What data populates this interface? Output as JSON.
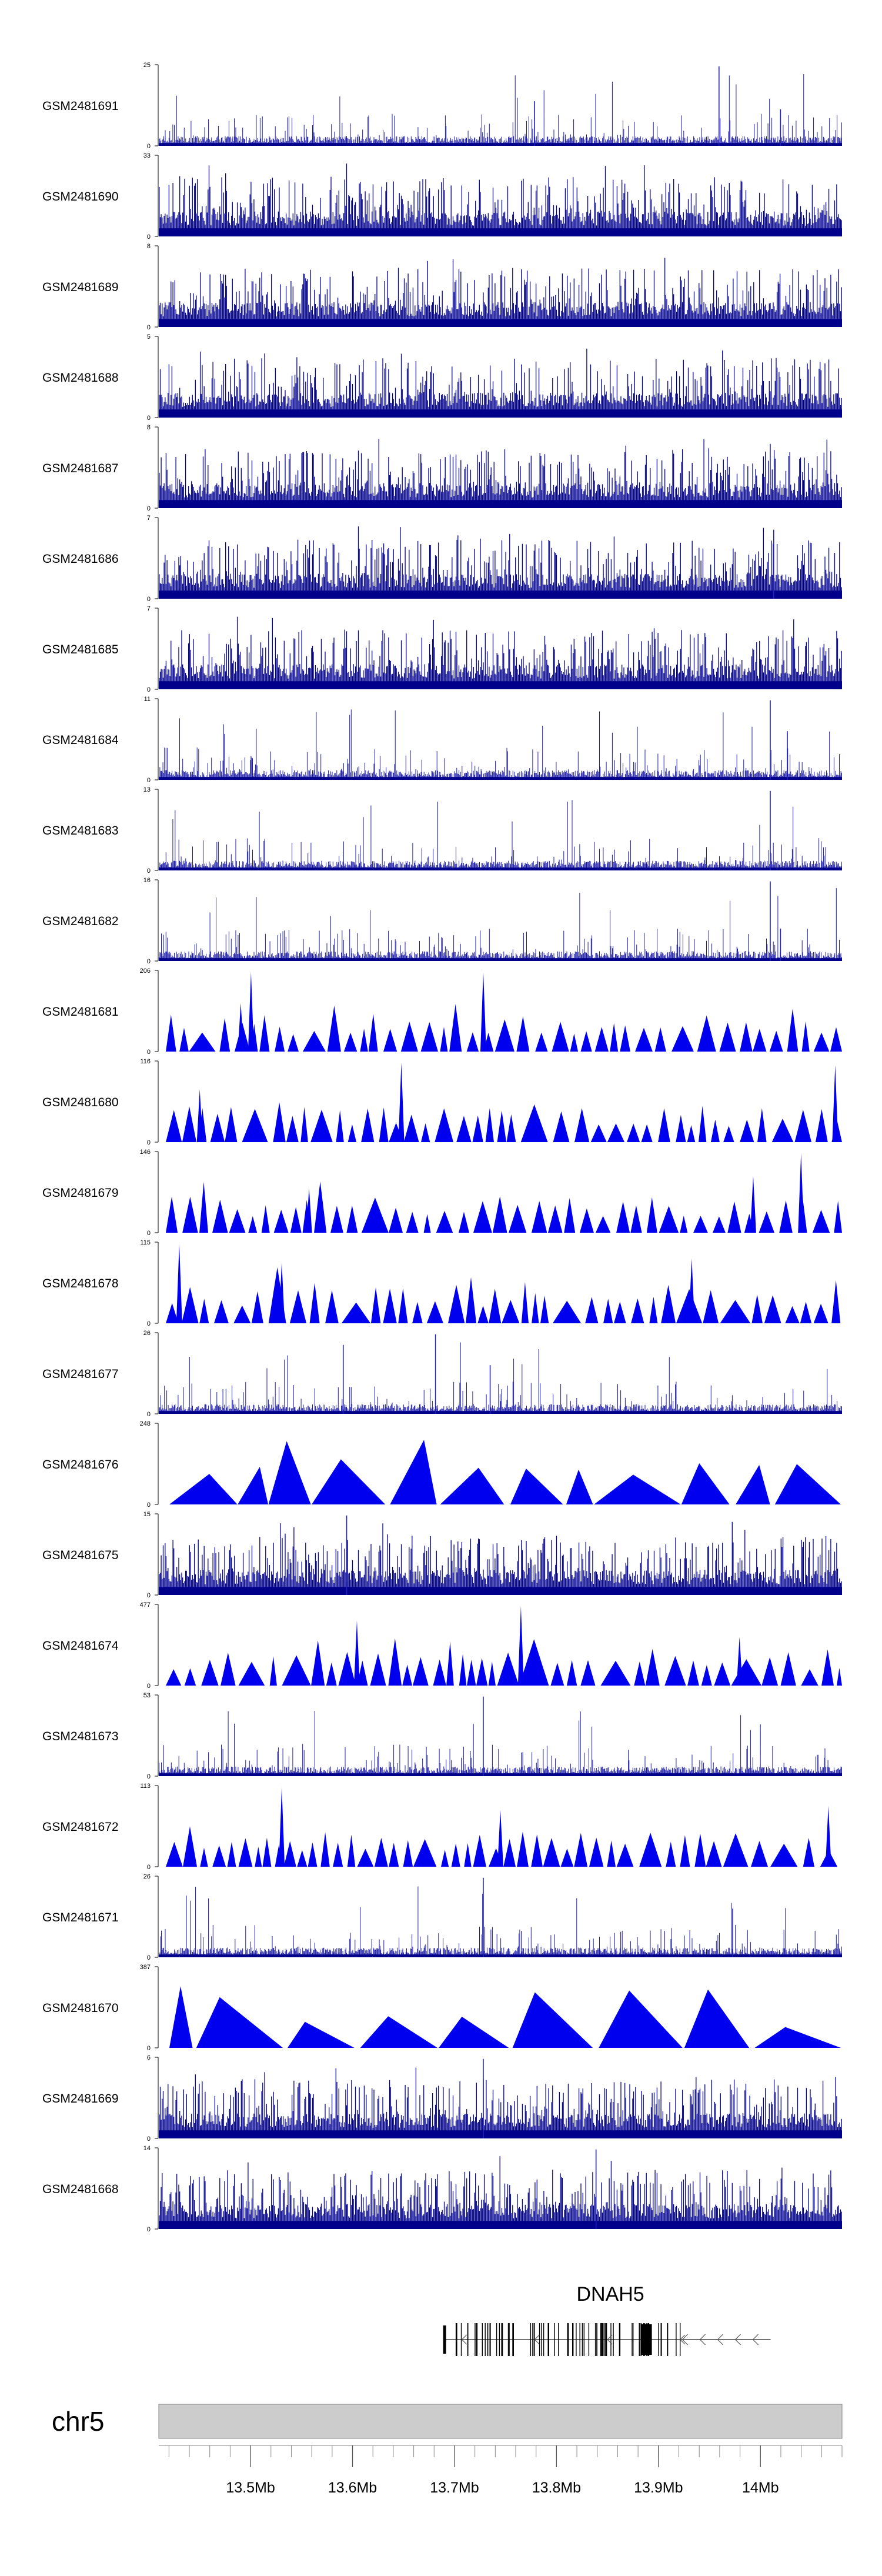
{
  "chart_data": {
    "type": "genome-browser",
    "tracks": [
      {
        "name": "GSM2481691",
        "ymax": "25",
        "ymin": "0",
        "style": "bars",
        "peaks": [
          {
            "x": 0.82,
            "h": 0.98
          },
          {
            "x": 0.91,
            "h": 0.45
          },
          {
            "x": 0.55,
            "h": 0.55
          }
        ]
      },
      {
        "name": "GSM2481690",
        "ymax": "33",
        "ymin": "0",
        "style": "dense",
        "peaks": []
      },
      {
        "name": "GSM2481689",
        "ymax": "8",
        "ymin": "0",
        "style": "dense",
        "peaks": []
      },
      {
        "name": "GSM2481688",
        "ymax": "5",
        "ymin": "0",
        "style": "dense",
        "peaks": []
      },
      {
        "name": "GSM2481687",
        "ymax": "8",
        "ymin": "0",
        "style": "dense",
        "peaks": []
      },
      {
        "name": "GSM2481686",
        "ymax": "7",
        "ymin": "0",
        "style": "dense",
        "peaks": [
          {
            "x": 0.9,
            "h": 0.85
          }
        ]
      },
      {
        "name": "GSM2481685",
        "ymax": "7",
        "ymin": "0",
        "style": "dense",
        "peaks": []
      },
      {
        "name": "GSM2481684",
        "ymax": "11",
        "ymin": "0",
        "style": "bars",
        "peaks": [
          {
            "x": 0.895,
            "h": 0.98
          },
          {
            "x": 0.92,
            "h": 0.6
          }
        ]
      },
      {
        "name": "GSM2481683",
        "ymax": "13",
        "ymin": "0",
        "style": "bars",
        "peaks": [
          {
            "x": 0.895,
            "h": 0.98
          }
        ]
      },
      {
        "name": "GSM2481682",
        "ymax": "16",
        "ymin": "0",
        "style": "bars",
        "peaks": [
          {
            "x": 0.895,
            "h": 0.98
          },
          {
            "x": 0.91,
            "h": 0.4
          }
        ]
      },
      {
        "name": "GSM2481681",
        "ymax": "206",
        "ymin": "0",
        "style": "triangles",
        "peaks": [
          {
            "x": 0.135,
            "h": 0.98
          },
          {
            "x": 0.475,
            "h": 0.98
          },
          {
            "x": 0.12,
            "h": 0.6
          }
        ]
      },
      {
        "name": "GSM2481680",
        "ymax": "116",
        "ymin": "0",
        "style": "triangles",
        "peaks": [
          {
            "x": 0.355,
            "h": 0.98
          },
          {
            "x": 0.06,
            "h": 0.65
          },
          {
            "x": 0.99,
            "h": 0.95
          }
        ]
      },
      {
        "name": "GSM2481679",
        "ymax": "146",
        "ymin": "0",
        "style": "triangles",
        "peaks": [
          {
            "x": 0.94,
            "h": 0.98
          },
          {
            "x": 0.87,
            "h": 0.7
          },
          {
            "x": 0.22,
            "h": 0.55
          }
        ]
      },
      {
        "name": "GSM2481678",
        "ymax": "115",
        "ymin": "0",
        "style": "triangles",
        "peaks": [
          {
            "x": 0.03,
            "h": 0.98
          },
          {
            "x": 0.18,
            "h": 0.75
          },
          {
            "x": 0.78,
            "h": 0.8
          }
        ]
      },
      {
        "name": "GSM2481677",
        "ymax": "26",
        "ymin": "0",
        "style": "bars",
        "peaks": [
          {
            "x": 0.405,
            "h": 0.98
          },
          {
            "x": 0.27,
            "h": 0.85
          },
          {
            "x": 0.485,
            "h": 0.6
          }
        ]
      },
      {
        "name": "GSM2481676",
        "ymax": "248",
        "ymin": "0",
        "style": "triangles-wide",
        "peaks": []
      },
      {
        "name": "GSM2481675",
        "ymax": "15",
        "ymin": "0",
        "style": "dense",
        "peaks": [
          {
            "x": 0.275,
            "h": 0.98
          }
        ]
      },
      {
        "name": "GSM2481674",
        "ymax": "477",
        "ymin": "0",
        "style": "triangles",
        "peaks": [
          {
            "x": 0.53,
            "h": 0.98
          },
          {
            "x": 0.29,
            "h": 0.8
          },
          {
            "x": 0.85,
            "h": 0.6
          }
        ]
      },
      {
        "name": "GSM2481673",
        "ymax": "53",
        "ymin": "0",
        "style": "bars",
        "peaks": [
          {
            "x": 0.475,
            "h": 0.98
          }
        ]
      },
      {
        "name": "GSM2481672",
        "ymax": "113",
        "ymin": "0",
        "style": "triangles",
        "peaks": [
          {
            "x": 0.18,
            "h": 0.98
          },
          {
            "x": 0.5,
            "h": 0.7
          },
          {
            "x": 0.98,
            "h": 0.75
          }
        ]
      },
      {
        "name": "GSM2481671",
        "ymax": "26",
        "ymin": "0",
        "style": "bars",
        "peaks": [
          {
            "x": 0.475,
            "h": 0.98
          },
          {
            "x": 0.84,
            "h": 0.6
          }
        ]
      },
      {
        "name": "GSM2481670",
        "ymax": "387",
        "ymin": "0",
        "style": "triangles-wide2",
        "peaks": []
      },
      {
        "name": "GSM2481669",
        "ymax": "6",
        "ymin": "0",
        "style": "dense",
        "peaks": [
          {
            "x": 0.475,
            "h": 0.98
          }
        ]
      },
      {
        "name": "GSM2481668",
        "ymax": "14",
        "ymin": "0",
        "style": "dense",
        "peaks": [
          {
            "x": 0.64,
            "h": 0.98
          }
        ]
      }
    ],
    "gene": {
      "name": "DNAH5",
      "start_mb": 13.69,
      "end_mb": 14.01
    },
    "chromosome": "chr5",
    "x_range_mb": [
      13.41,
      14.08
    ],
    "ticks": [
      {
        "value": 13.5,
        "label": "13.5Mb"
      },
      {
        "value": 13.6,
        "label": "13.6Mb"
      },
      {
        "value": 13.7,
        "label": "13.7Mb"
      },
      {
        "value": 13.8,
        "label": "13.8Mb"
      },
      {
        "value": 13.9,
        "label": "13.9Mb"
      },
      {
        "value": 14.0,
        "label": "14Mb"
      }
    ],
    "colors": {
      "signal": "#0000ee",
      "dense": "#00008b",
      "ideogram": "#cccccc",
      "gene": "#000000"
    }
  }
}
